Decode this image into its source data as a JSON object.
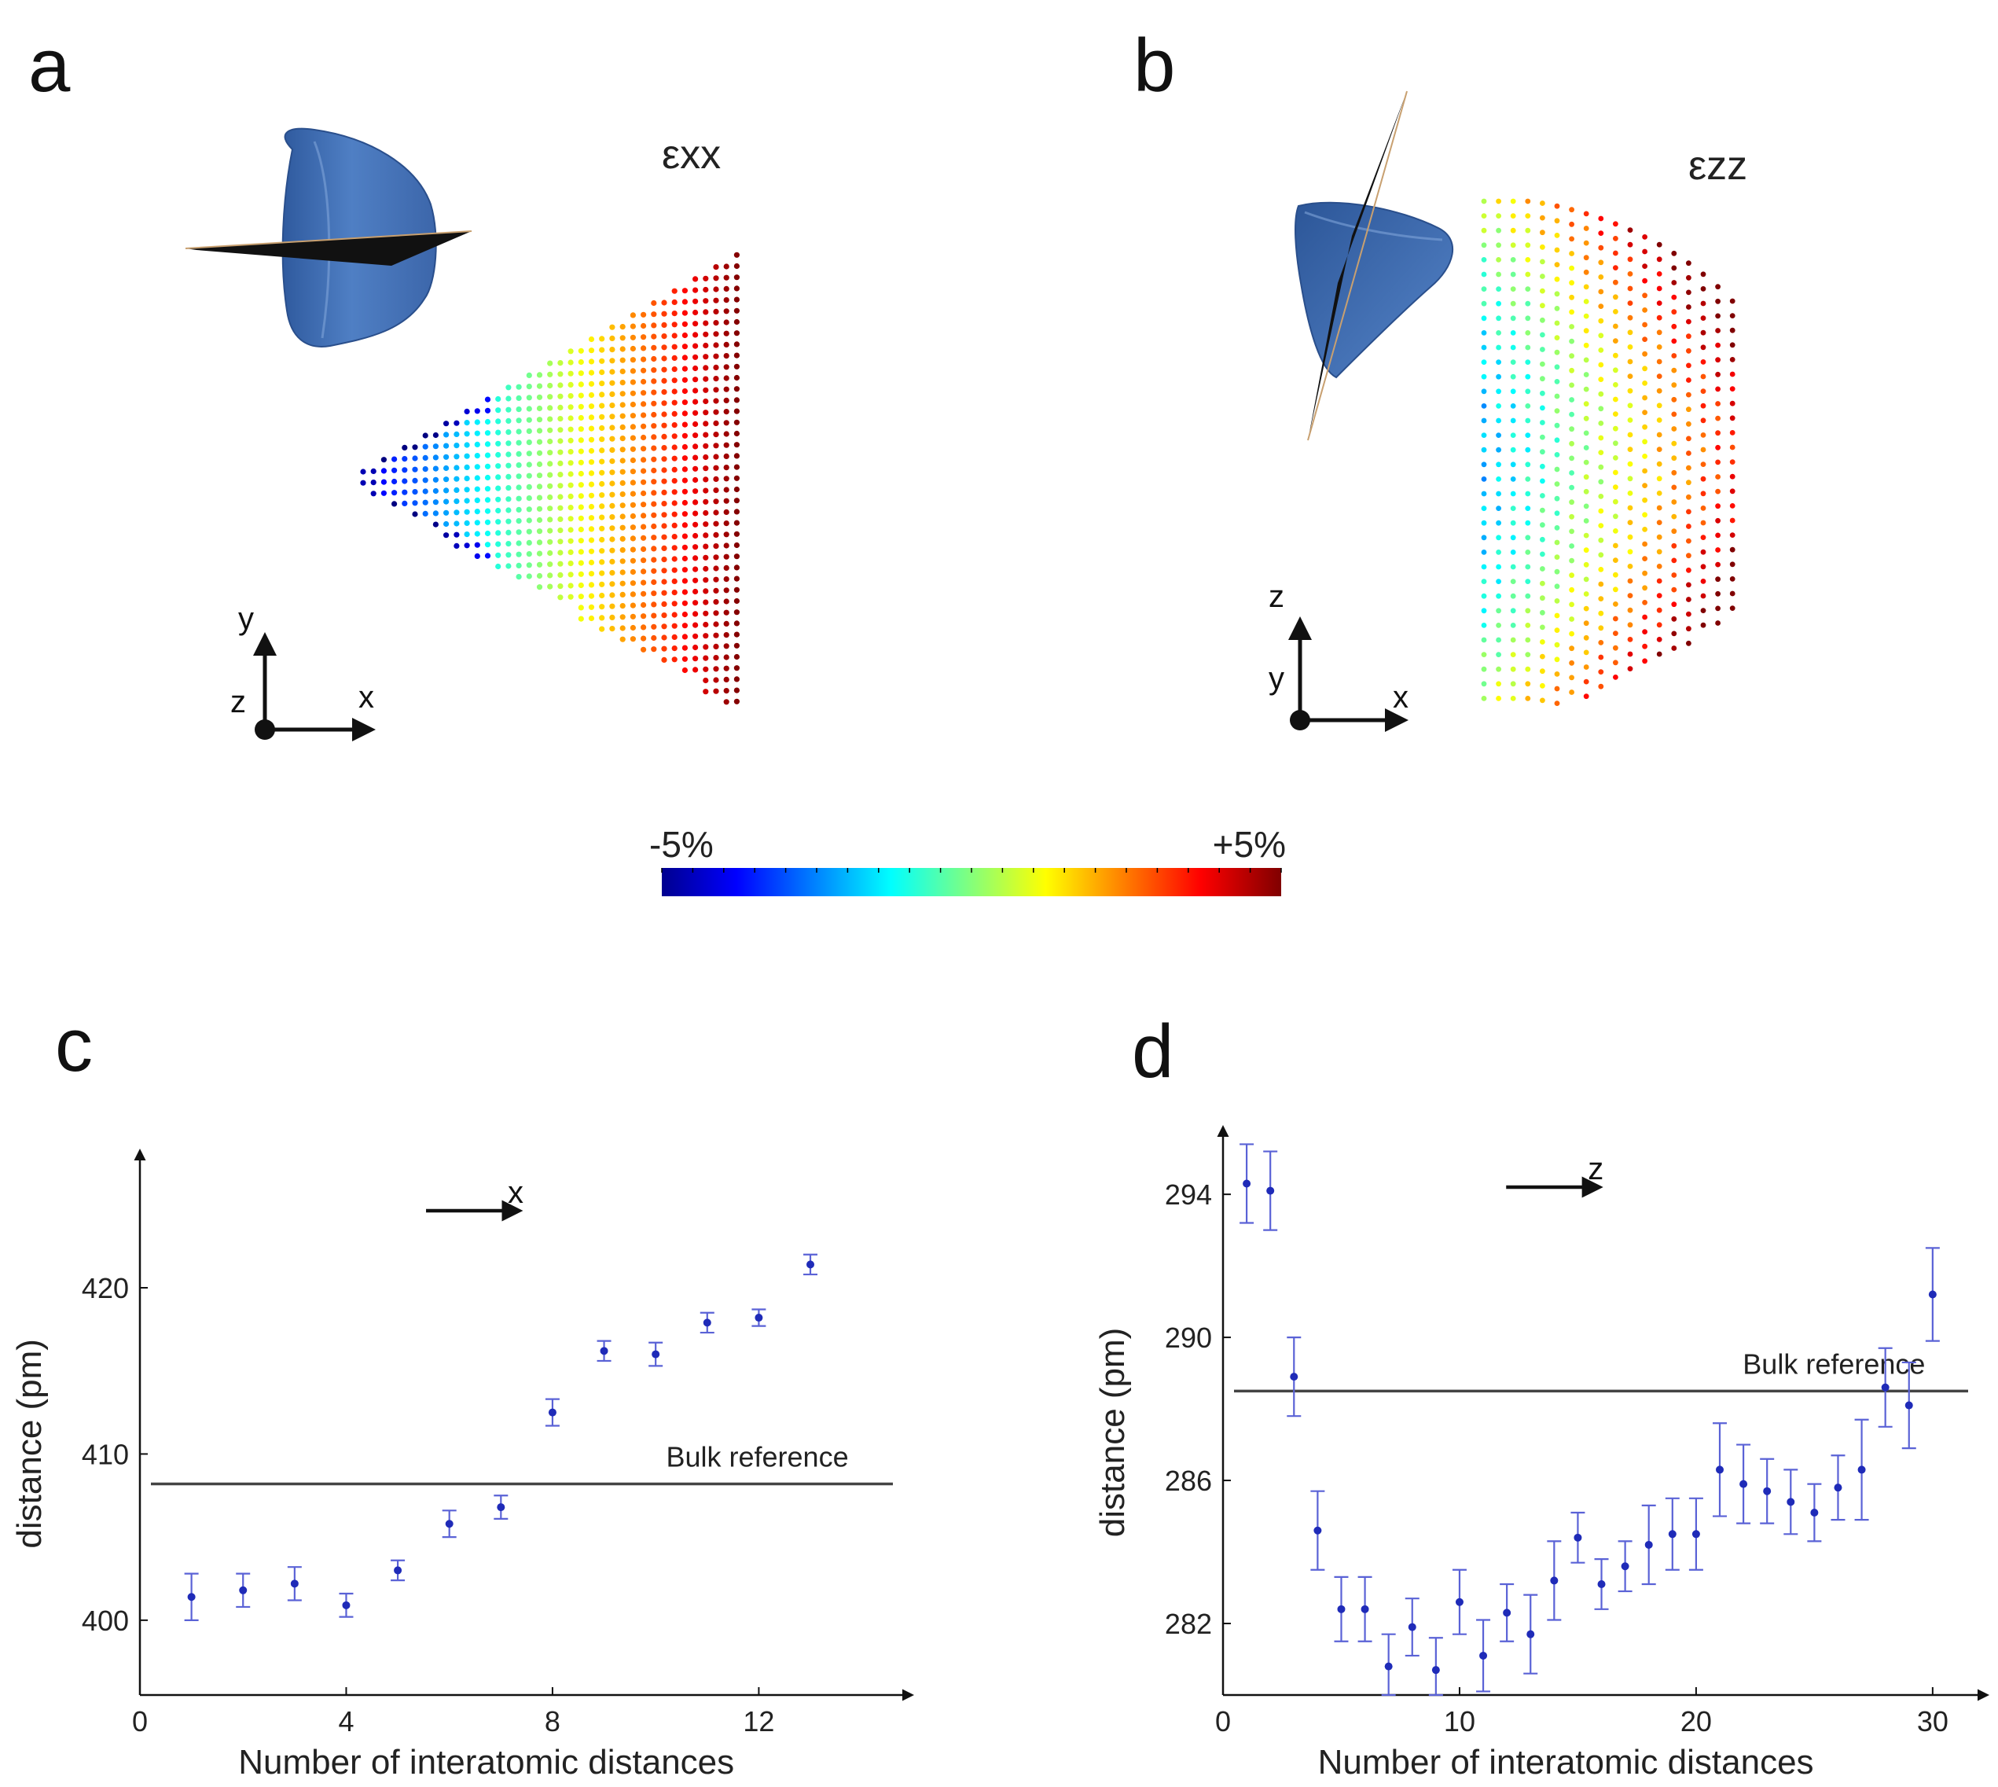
{
  "panels": {
    "a": {
      "letter": "a",
      "strain_label": "εxx",
      "axes": {
        "up": "y",
        "right": "x",
        "out": "z"
      }
    },
    "b": {
      "letter": "b",
      "strain_label": "εzz",
      "axes": {
        "up": "z",
        "right": "x",
        "out": "y"
      }
    },
    "c": {
      "letter": "c"
    },
    "d": {
      "letter": "d"
    }
  },
  "colorbar": {
    "min_label": "-5%",
    "max_label": "+5%",
    "colormap": "jet"
  },
  "chart_data": [
    {
      "id": "c",
      "type": "scatter",
      "title": "",
      "xlabel": "Number of interatomic distances",
      "ylabel": "distance (pm)",
      "xlim": [
        0,
        14.6
      ],
      "ylim": [
        395.5,
        427
      ],
      "xticks": [
        0,
        4,
        8,
        12
      ],
      "yticks": [
        400,
        410,
        420
      ],
      "direction_label": "x",
      "reference": {
        "label": "Bulk reference",
        "value": 408.2
      },
      "series": [
        {
          "name": "distance",
          "color": "#1f2bb8",
          "x": [
            1,
            2,
            3,
            4,
            5,
            6,
            7,
            8,
            9,
            10,
            11,
            12,
            13
          ],
          "y": [
            401.4,
            401.8,
            402.2,
            400.9,
            403.0,
            405.8,
            406.8,
            412.5,
            416.2,
            416.0,
            417.9,
            418.2,
            421.4
          ],
          "err": [
            1.4,
            1.0,
            1.0,
            0.7,
            0.6,
            0.8,
            0.7,
            0.8,
            0.6,
            0.7,
            0.6,
            0.5,
            0.6
          ]
        }
      ]
    },
    {
      "id": "d",
      "type": "scatter",
      "title": "",
      "xlabel": "Number of interatomic distances",
      "ylabel": "distance (pm)",
      "xlim": [
        0,
        31.5
      ],
      "ylim": [
        280,
        295.3
      ],
      "xticks": [
        0,
        10,
        20,
        30
      ],
      "yticks": [
        282,
        286,
        290,
        294
      ],
      "direction_label": "z",
      "reference": {
        "label": "Bulk reference",
        "value": 288.5
      },
      "series": [
        {
          "name": "distance",
          "color": "#1f2bb8",
          "x": [
            1,
            2,
            3,
            4,
            5,
            6,
            7,
            8,
            9,
            10,
            11,
            12,
            13,
            14,
            15,
            16,
            17,
            18,
            19,
            20,
            21,
            22,
            23,
            24,
            25,
            26,
            27,
            28,
            29,
            30
          ],
          "y": [
            294.3,
            294.1,
            288.9,
            284.6,
            282.4,
            282.4,
            280.8,
            281.9,
            280.7,
            282.6,
            281.1,
            282.3,
            281.7,
            283.2,
            284.4,
            283.1,
            283.6,
            284.2,
            284.5,
            284.5,
            286.3,
            285.9,
            285.7,
            285.4,
            285.1,
            285.8,
            286.3,
            288.6,
            288.1,
            291.2
          ],
          "err": [
            1.1,
            1.1,
            1.1,
            1.1,
            0.9,
            0.9,
            0.9,
            0.8,
            0.9,
            0.9,
            1.0,
            0.8,
            1.1,
            1.1,
            0.7,
            0.7,
            0.7,
            1.1,
            1.0,
            1.0,
            1.3,
            1.1,
            0.9,
            0.9,
            0.8,
            0.9,
            1.4,
            1.1,
            1.2,
            1.3
          ]
        }
      ]
    }
  ]
}
